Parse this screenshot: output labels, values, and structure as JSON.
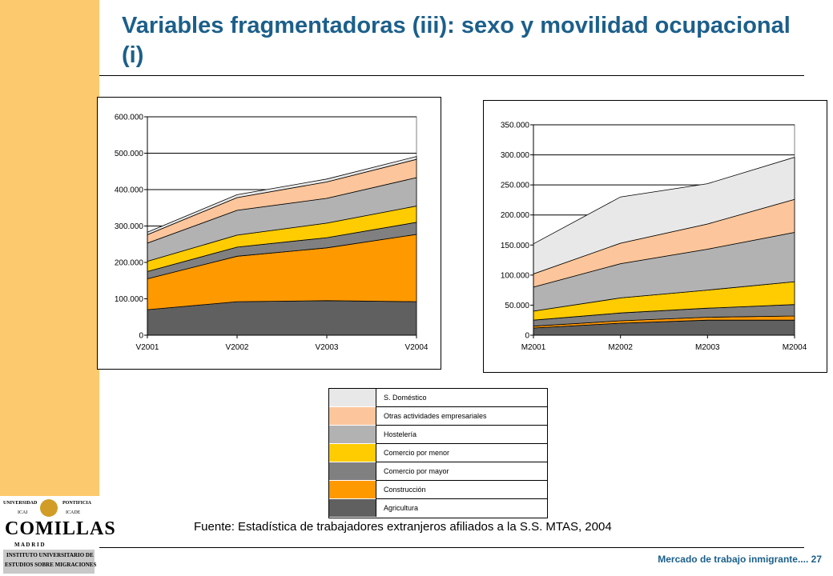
{
  "slide": {
    "title": "Variables fragmentadoras (iii): sexo y movilidad ocupacional (i)",
    "source": "Fuente: Estadística de trabajadores extranjeros afiliados a la S.S. MTAS, 2004",
    "footer": "Mercado de trabajo inmigrante.... 27"
  },
  "logo": {
    "line1_left": "UNIVERSIDAD",
    "line1_right": "PONTIFICIA",
    "line2_left": "ICAI",
    "line2_right": "ICADE",
    "name": "COMILLAS",
    "city": "M A D R I D",
    "line4": "INSTITUTO UNIVERSITARIO DE",
    "line5": "ESTUDIOS SOBRE MIGRACIONES"
  },
  "colors": {
    "S. Doméstico": "#e8e8e8",
    "Otras actividades empresariales": "#fcc59b",
    "Hostelería": "#b2b2b2",
    "Comercio por menor": "#fecc00",
    "Comercio por mayor": "#808080",
    "Construcción": "#ff9900",
    "Agricultura": "#606060"
  },
  "legend": [
    {
      "label": "S. Doméstico"
    },
    {
      "label": "Otras actividades empresariales"
    },
    {
      "label": "Hostelería"
    },
    {
      "label": "Comercio por menor"
    },
    {
      "label": "Comercio por mayor"
    },
    {
      "label": "Construcción"
    },
    {
      "label": "Agricultura"
    }
  ],
  "chart_data": [
    {
      "type": "area",
      "stacked": true,
      "categories": [
        "V2001",
        "V2002",
        "V2003",
        "V2004"
      ],
      "ylim": [
        0,
        600000
      ],
      "yticks": [
        "0",
        "100.000",
        "200.000",
        "300.000",
        "400.000",
        "500.000",
        "600.000"
      ],
      "grid": true,
      "series": [
        {
          "name": "Agricultura",
          "values": [
            70000,
            92000,
            95000,
            92000
          ]
        },
        {
          "name": "Construcción",
          "values": [
            85000,
            125000,
            145000,
            185000
          ]
        },
        {
          "name": "Comercio por mayor",
          "values": [
            20000,
            25000,
            28000,
            33000
          ]
        },
        {
          "name": "Comercio por menor",
          "values": [
            28000,
            33000,
            40000,
            45000
          ]
        },
        {
          "name": "Hostelería",
          "values": [
            50000,
            68000,
            68000,
            78000
          ]
        },
        {
          "name": "Otras actividades empresariales",
          "values": [
            23000,
            35000,
            45000,
            50000
          ]
        },
        {
          "name": "S. Doméstico",
          "values": [
            7000,
            8000,
            8000,
            8000
          ]
        }
      ]
    },
    {
      "type": "area",
      "stacked": true,
      "categories": [
        "M2001",
        "M2002",
        "M2003",
        "M2004"
      ],
      "ylim": [
        0,
        350000
      ],
      "yticks": [
        "0",
        "50.000",
        "100.000",
        "150.000",
        "200.000",
        "250.000",
        "300.000",
        "350.000"
      ],
      "grid": true,
      "series": [
        {
          "name": "Agricultura",
          "values": [
            12000,
            20000,
            25000,
            25000
          ]
        },
        {
          "name": "Construcción",
          "values": [
            3000,
            4000,
            5000,
            7000
          ]
        },
        {
          "name": "Comercio por mayor",
          "values": [
            10000,
            13000,
            15000,
            19000
          ]
        },
        {
          "name": "Comercio por menor",
          "values": [
            15000,
            25000,
            30000,
            38000
          ]
        },
        {
          "name": "Hostelería",
          "values": [
            40000,
            57000,
            68000,
            82000
          ]
        },
        {
          "name": "Otras actividades empresariales",
          "values": [
            22000,
            34000,
            42000,
            55000
          ]
        },
        {
          "name": "S. Doméstico",
          "values": [
            50000,
            77000,
            67000,
            70000
          ]
        }
      ]
    }
  ]
}
